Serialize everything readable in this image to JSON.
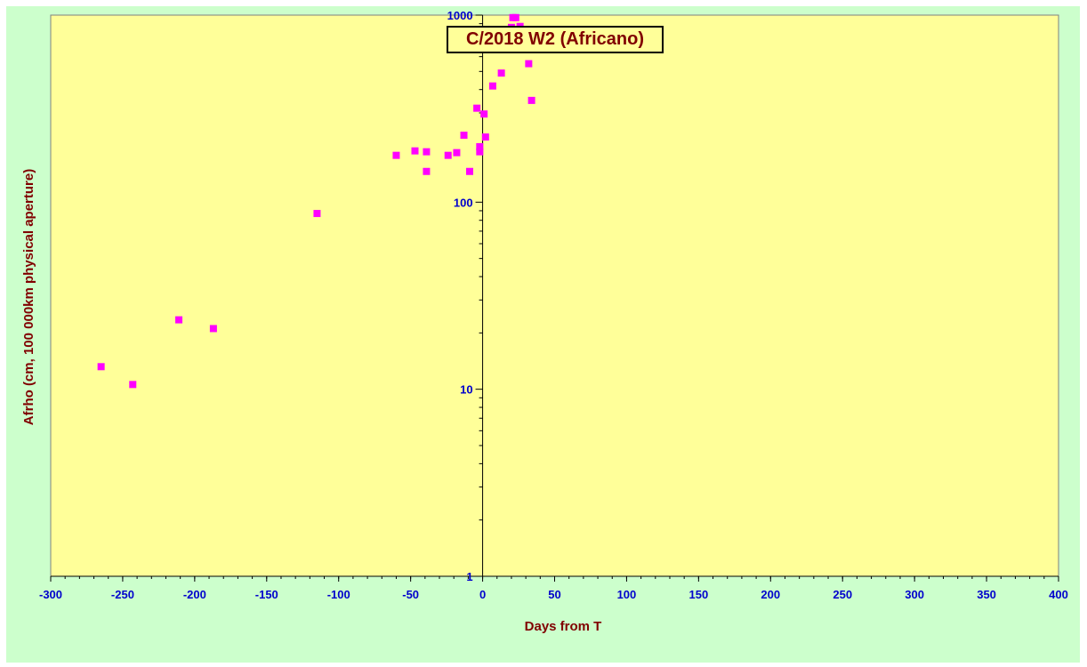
{
  "chart_data": {
    "type": "scatter",
    "title": "C/2018 W2 (Africano)",
    "xlabel": "Days from T",
    "ylabel": "Afrho (cm, 100 000km physical aperture)",
    "xlim": [
      -300,
      400
    ],
    "ylim": [
      1,
      1000
    ],
    "y_scale": "log",
    "x_ticks": [
      -300,
      -250,
      -200,
      -150,
      -100,
      -50,
      0,
      50,
      100,
      150,
      200,
      250,
      300,
      350,
      400
    ],
    "y_ticks": [
      1,
      10,
      100,
      1000
    ],
    "grid": false,
    "legend": "none",
    "marker_color": "#ff00ff",
    "plot_background": "#ffff99",
    "figure_background": "#ccffcc",
    "points": [
      {
        "x": -265,
        "y": 13.2
      },
      {
        "x": -243,
        "y": 10.6
      },
      {
        "x": -211,
        "y": 23.5
      },
      {
        "x": -187,
        "y": 21.1
      },
      {
        "x": -115,
        "y": 87
      },
      {
        "x": -60,
        "y": 178
      },
      {
        "x": -47,
        "y": 188
      },
      {
        "x": -39,
        "y": 186
      },
      {
        "x": -39,
        "y": 146
      },
      {
        "x": -24,
        "y": 178
      },
      {
        "x": -18,
        "y": 184
      },
      {
        "x": -13,
        "y": 228
      },
      {
        "x": -9,
        "y": 146
      },
      {
        "x": -4,
        "y": 318
      },
      {
        "x": -2,
        "y": 198
      },
      {
        "x": -2,
        "y": 186
      },
      {
        "x": 1,
        "y": 296
      },
      {
        "x": 2,
        "y": 223
      },
      {
        "x": 7,
        "y": 418
      },
      {
        "x": 13,
        "y": 490
      },
      {
        "x": 20,
        "y": 860
      },
      {
        "x": 21,
        "y": 970
      },
      {
        "x": 23,
        "y": 970
      },
      {
        "x": 26,
        "y": 870
      },
      {
        "x": 29,
        "y": 730
      },
      {
        "x": 32,
        "y": 550
      },
      {
        "x": 34,
        "y": 350
      }
    ]
  }
}
